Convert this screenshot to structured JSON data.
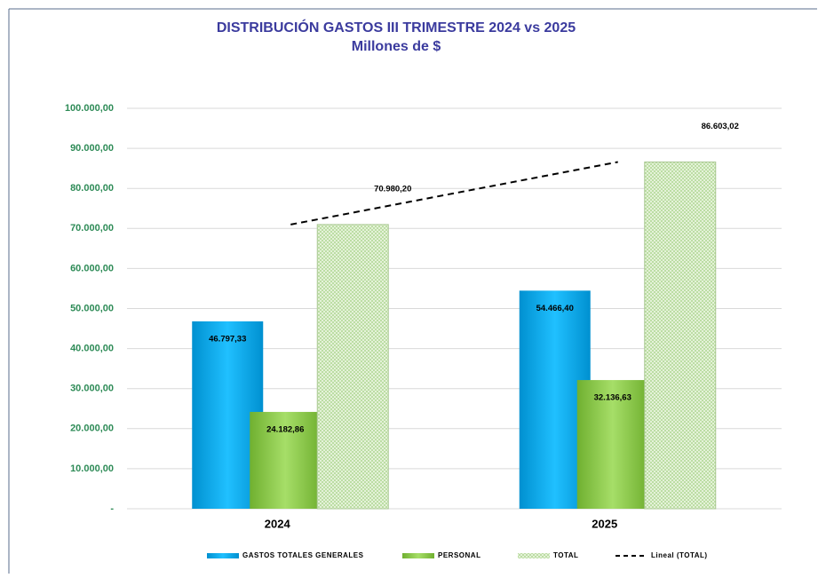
{
  "chart_data": {
    "type": "bar",
    "title": "DISTRIBUCIÓN GASTOS III TRIMESTRE 2024 vs 2025",
    "subtitle": "Millones de $",
    "categories": [
      "2024",
      "2025"
    ],
    "series": [
      {
        "name": "GASTOS TOTALES GENERALES",
        "color": "#00b0f0",
        "values": [
          46797.33,
          54466.4
        ],
        "value_labels": [
          "46.797,33",
          "54.466,40"
        ]
      },
      {
        "name": "PERSONAL",
        "color": "#92d050",
        "values": [
          24182.86,
          32136.63
        ],
        "value_labels": [
          "24.182,86",
          "32.136,63"
        ]
      },
      {
        "name": "TOTAL",
        "color": "#c9e6b0",
        "values": [
          70980.2,
          86603.02
        ],
        "value_labels": [
          "70.980,20",
          "86.603,02"
        ]
      },
      {
        "name": "Lineal (TOTAL)",
        "color": "#000000",
        "style": "dashed",
        "values": [
          70980.2,
          86603.02
        ]
      }
    ],
    "ylim": [
      0,
      100000
    ],
    "yticks": [
      {
        "value": 0,
        "label": "-"
      },
      {
        "value": 10000,
        "label": "10.000,00"
      },
      {
        "value": 20000,
        "label": "20.000,00"
      },
      {
        "value": 30000,
        "label": "30.000,00"
      },
      {
        "value": 40000,
        "label": "40.000,00"
      },
      {
        "value": 50000,
        "label": "50.000,00"
      },
      {
        "value": 60000,
        "label": "60.000,00"
      },
      {
        "value": 70000,
        "label": "70.000,00"
      },
      {
        "value": 80000,
        "label": "80.000,00"
      },
      {
        "value": 90000,
        "label": "90.000,00"
      },
      {
        "value": 100000,
        "label": "100.000,00"
      }
    ],
    "grid": true,
    "legend": "bottom"
  }
}
